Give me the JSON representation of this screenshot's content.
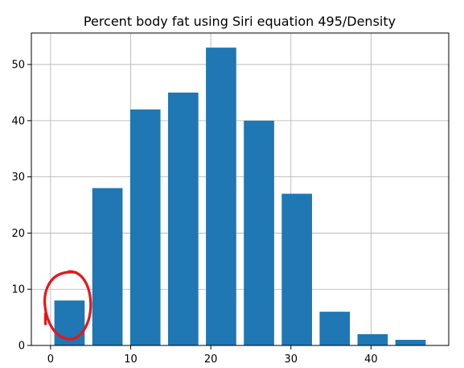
{
  "chart_data": {
    "type": "bar",
    "title": "Percent body fat using Siri equation 495/Density",
    "xlabel": "",
    "ylabel": "",
    "bins": [
      {
        "x0": 0.0,
        "x1": 4.73,
        "count": 8
      },
      {
        "x0": 4.73,
        "x1": 9.46,
        "count": 28
      },
      {
        "x0": 9.46,
        "x1": 14.19,
        "count": 42
      },
      {
        "x0": 14.19,
        "x1": 18.92,
        "count": 45
      },
      {
        "x0": 18.92,
        "x1": 23.65,
        "count": 53
      },
      {
        "x0": 23.65,
        "x1": 28.38,
        "count": 40
      },
      {
        "x0": 28.38,
        "x1": 33.11,
        "count": 27
      },
      {
        "x0": 33.11,
        "x1": 37.84,
        "count": 6
      },
      {
        "x0": 37.84,
        "x1": 42.57,
        "count": 2
      },
      {
        "x0": 42.57,
        "x1": 47.3,
        "count": 1
      }
    ],
    "xlim": [
      -2.4,
      49.7
    ],
    "ylim": [
      0,
      55.6
    ],
    "xticks": [
      0,
      10,
      20,
      30,
      40
    ],
    "yticks": [
      0,
      10,
      20,
      30,
      40,
      50
    ],
    "grid": true,
    "bar_color": "#1f77b4",
    "annotations": [
      {
        "type": "hand-drawn-circle",
        "color": "#e8161b",
        "target_bin": 0
      }
    ]
  }
}
